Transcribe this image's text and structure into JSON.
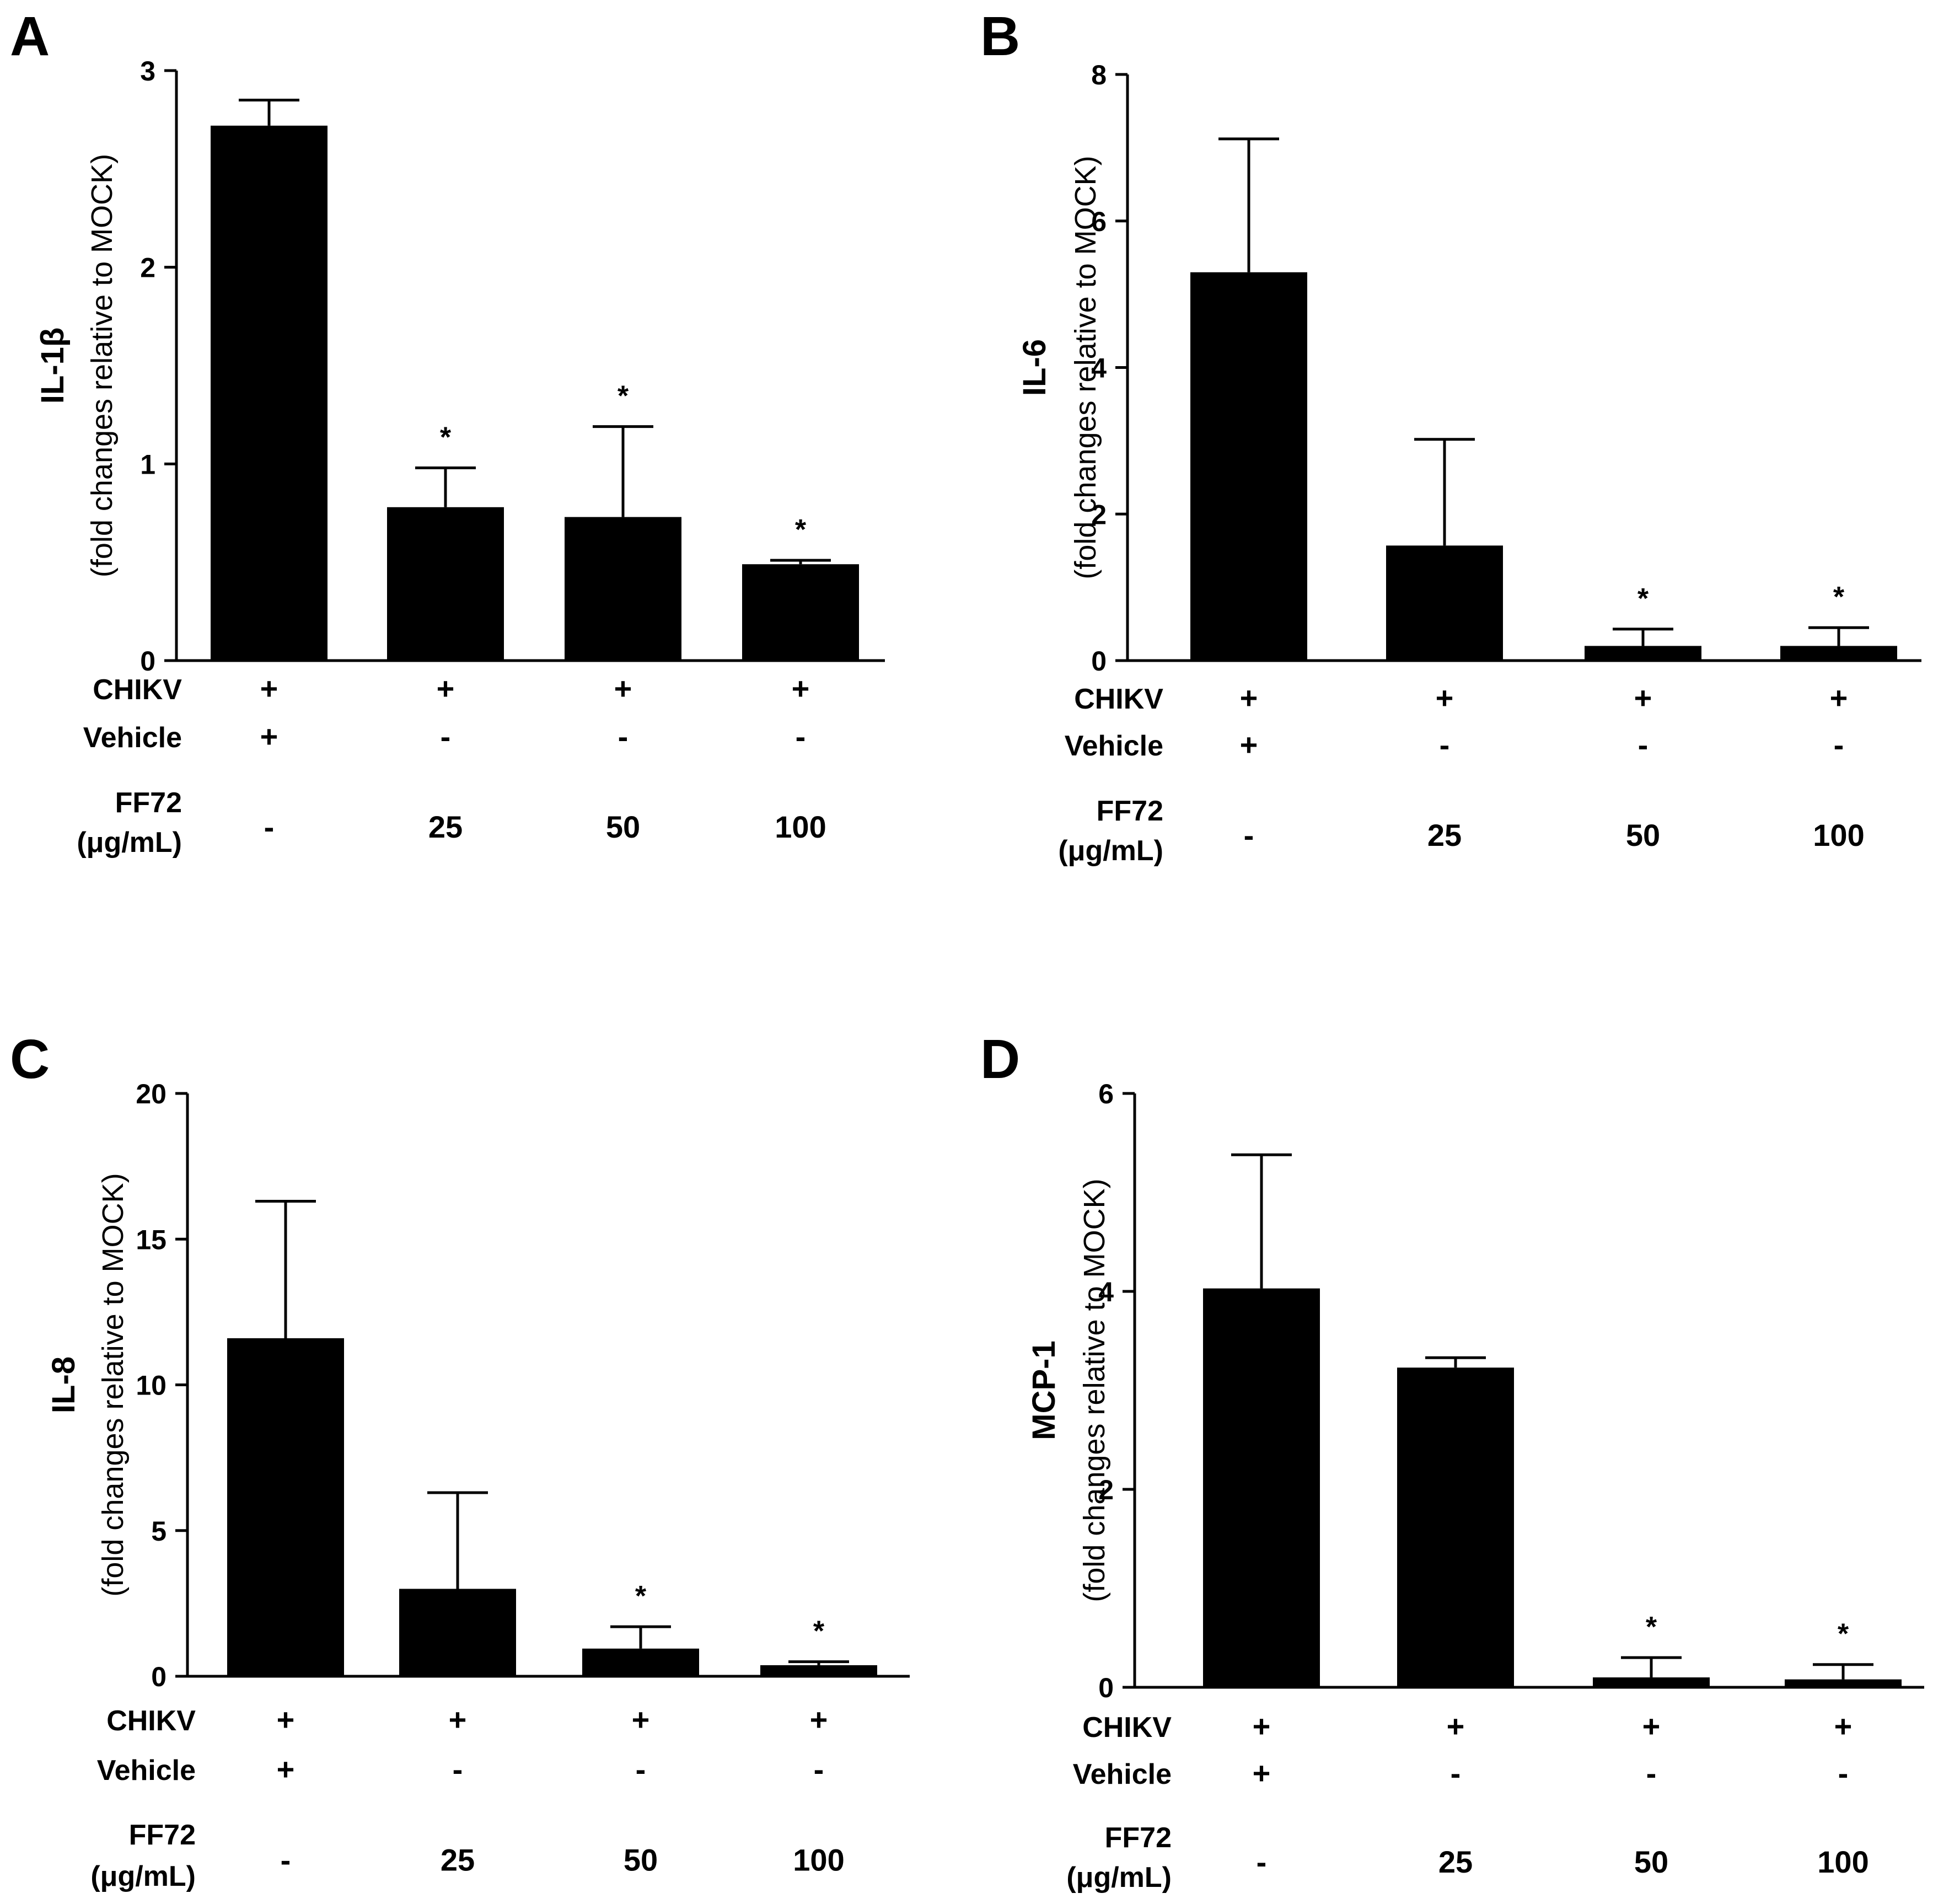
{
  "chart_data": [
    {
      "panel": "A",
      "type": "bar",
      "ylabel_main": "IL-1β",
      "ylabel_sub": "(fold changes relative to MOCK)",
      "ylim": [
        0,
        3
      ],
      "yticks": [
        0,
        1,
        2,
        3
      ],
      "categories": [
        "-",
        "25",
        "50",
        "100"
      ],
      "values": [
        2.72,
        0.78,
        0.73,
        0.49
      ],
      "errors": [
        0.13,
        0.2,
        0.46,
        0.02
      ],
      "significance": [
        "",
        "*",
        "*",
        "*"
      ],
      "conditions": [
        {
          "label": "CHIKV",
          "values": [
            "+",
            "+",
            "+",
            "+"
          ]
        },
        {
          "label": "Vehicle",
          "values": [
            "+",
            "-",
            "-",
            "-"
          ]
        }
      ],
      "dose_label": [
        "FF72",
        "(μg/mL)"
      ]
    },
    {
      "panel": "B",
      "type": "bar",
      "ylabel_main": "IL-6",
      "ylabel_sub": "(fold changes relative to MOCK)",
      "ylim": [
        0,
        8
      ],
      "yticks": [
        0,
        2,
        4,
        6,
        8
      ],
      "categories": [
        "-",
        "25",
        "50",
        "100"
      ],
      "values": [
        5.3,
        1.57,
        0.2,
        0.2
      ],
      "errors": [
        1.82,
        1.45,
        0.23,
        0.25
      ],
      "significance": [
        "",
        "",
        "*",
        "*"
      ],
      "conditions": [
        {
          "label": "CHIKV",
          "values": [
            "+",
            "+",
            "+",
            "+"
          ]
        },
        {
          "label": "Vehicle",
          "values": [
            "+",
            "-",
            "-",
            "-"
          ]
        }
      ],
      "dose_label": [
        "FF72",
        "(μg/mL)"
      ]
    },
    {
      "panel": "C",
      "type": "bar",
      "ylabel_main": "IL-8",
      "ylabel_sub": "(fold changes relative to MOCK)",
      "ylim": [
        0,
        20
      ],
      "yticks": [
        0,
        5,
        10,
        15,
        20
      ],
      "categories": [
        "-",
        "25",
        "50",
        "100"
      ],
      "values": [
        11.6,
        3.0,
        0.95,
        0.38
      ],
      "errors": [
        4.7,
        3.3,
        0.75,
        0.12
      ],
      "significance": [
        "",
        "",
        "*",
        "*"
      ],
      "conditions": [
        {
          "label": "CHIKV",
          "values": [
            "+",
            "+",
            "+",
            "+"
          ]
        },
        {
          "label": "Vehicle",
          "values": [
            "+",
            "-",
            "-",
            "-"
          ]
        }
      ],
      "dose_label": [
        "FF72",
        "(μg/mL)"
      ]
    },
    {
      "panel": "D",
      "type": "bar",
      "ylabel_main": "MCP-1",
      "ylabel_sub": "(fold changes relative to  MOCK)",
      "ylim": [
        0,
        6
      ],
      "yticks": [
        0,
        2,
        4,
        6
      ],
      "categories": [
        "-",
        "25",
        "50",
        "100"
      ],
      "values": [
        4.03,
        3.23,
        0.1,
        0.08
      ],
      "errors": [
        1.35,
        0.1,
        0.2,
        0.15
      ],
      "significance": [
        "",
        "",
        "*",
        "*"
      ],
      "conditions": [
        {
          "label": "CHIKV",
          "values": [
            "+",
            "+",
            "+",
            "+"
          ]
        },
        {
          "label": "Vehicle",
          "values": [
            "+",
            "-",
            "-",
            "-"
          ]
        }
      ],
      "dose_label": [
        "FF72",
        "(μg/mL)"
      ]
    }
  ]
}
